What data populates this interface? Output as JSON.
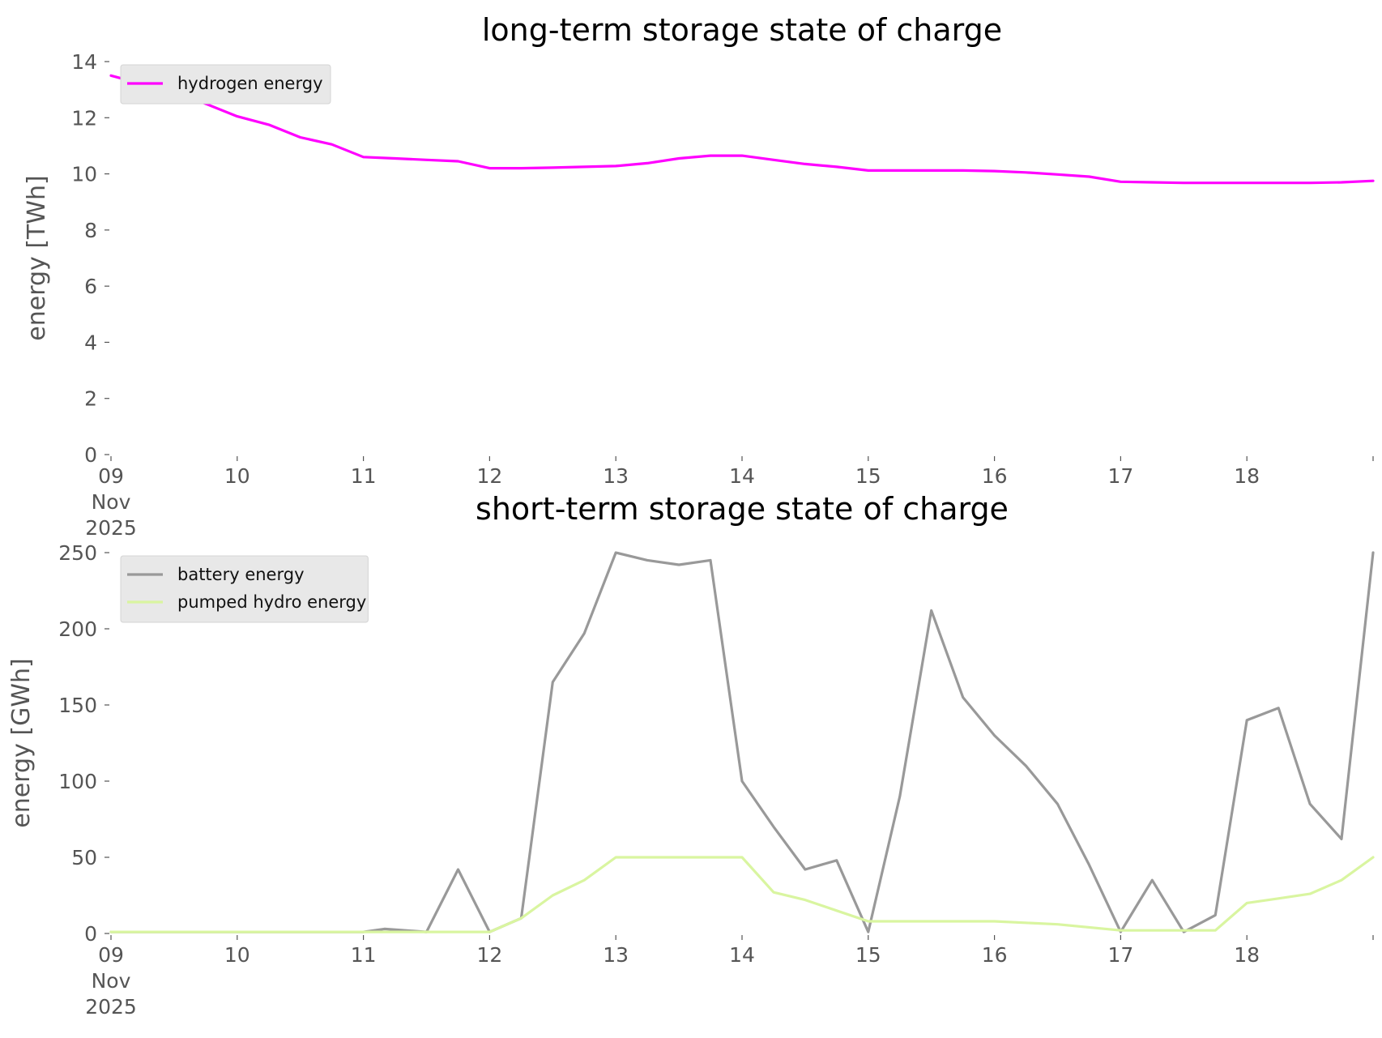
{
  "chart_data": [
    {
      "type": "line",
      "title": "long-term storage state of charge",
      "xlabel": "",
      "ylabel": "energy [TWh]",
      "xlim": [
        "2025-11-09T00:00",
        "2025-11-19T00:00"
      ],
      "ylim": [
        0,
        14
      ],
      "yticks": [
        0,
        2,
        4,
        6,
        8,
        10,
        12,
        14
      ],
      "xtick_labels": [
        "09\nNov\n2025",
        "10",
        "11",
        "12",
        "13",
        "14",
        "15",
        "16",
        "17",
        "18"
      ],
      "grid": false,
      "legend": "top-left",
      "series": [
        {
          "name": "hydrogen energy",
          "color": "#ff00ff",
          "points": [
            [
              "2025-11-09T00:00",
              13.5
            ],
            [
              "2025-11-09T06:00",
              13.2
            ],
            [
              "2025-11-09T12:00",
              12.95
            ],
            [
              "2025-11-09T18:00",
              12.5
            ],
            [
              "2025-11-10T00:00",
              12.05
            ],
            [
              "2025-11-10T06:00",
              11.75
            ],
            [
              "2025-11-10T12:00",
              11.3
            ],
            [
              "2025-11-10T18:00",
              11.05
            ],
            [
              "2025-11-11T00:00",
              10.6
            ],
            [
              "2025-11-11T06:00",
              10.55
            ],
            [
              "2025-11-11T12:00",
              10.5
            ],
            [
              "2025-11-11T18:00",
              10.45
            ],
            [
              "2025-11-12T00:00",
              10.2
            ],
            [
              "2025-11-12T06:00",
              10.2
            ],
            [
              "2025-11-12T12:00",
              10.22
            ],
            [
              "2025-11-12T18:00",
              10.25
            ],
            [
              "2025-11-13T00:00",
              10.28
            ],
            [
              "2025-11-13T06:00",
              10.38
            ],
            [
              "2025-11-13T12:00",
              10.55
            ],
            [
              "2025-11-13T18:00",
              10.65
            ],
            [
              "2025-11-14T00:00",
              10.65
            ],
            [
              "2025-11-14T06:00",
              10.5
            ],
            [
              "2025-11-14T12:00",
              10.35
            ],
            [
              "2025-11-14T18:00",
              10.25
            ],
            [
              "2025-11-15T00:00",
              10.12
            ],
            [
              "2025-11-15T06:00",
              10.12
            ],
            [
              "2025-11-15T12:00",
              10.12
            ],
            [
              "2025-11-15T18:00",
              10.12
            ],
            [
              "2025-11-16T00:00",
              10.1
            ],
            [
              "2025-11-16T06:00",
              10.05
            ],
            [
              "2025-11-16T12:00",
              9.98
            ],
            [
              "2025-11-16T18:00",
              9.9
            ],
            [
              "2025-11-17T00:00",
              9.72
            ],
            [
              "2025-11-17T06:00",
              9.7
            ],
            [
              "2025-11-17T12:00",
              9.68
            ],
            [
              "2025-11-17T18:00",
              9.68
            ],
            [
              "2025-11-18T00:00",
              9.68
            ],
            [
              "2025-11-18T06:00",
              9.68
            ],
            [
              "2025-11-18T12:00",
              9.68
            ],
            [
              "2025-11-18T18:00",
              9.7
            ],
            [
              "2025-11-19T00:00",
              9.75
            ]
          ]
        }
      ]
    },
    {
      "type": "line",
      "title": "short-term storage state of charge",
      "xlabel": "",
      "ylabel": "energy [GWh]",
      "xlim": [
        "2025-11-09T00:00",
        "2025-11-19T00:00"
      ],
      "ylim": [
        0,
        250
      ],
      "yticks": [
        0,
        50,
        100,
        150,
        200,
        250
      ],
      "xtick_labels": [
        "09\nNov\n2025",
        "10",
        "11",
        "12",
        "13",
        "14",
        "15",
        "16",
        "17",
        "18"
      ],
      "grid": false,
      "legend": "top-left",
      "series": [
        {
          "name": "battery energy",
          "color": "#999999",
          "points": [
            [
              "2025-11-09T00:00",
              1
            ],
            [
              "2025-11-11T00:00",
              1
            ],
            [
              "2025-11-11T04:00",
              3
            ],
            [
              "2025-11-11T08:00",
              2
            ],
            [
              "2025-11-11T12:00",
              1
            ],
            [
              "2025-11-11T18:00",
              42
            ],
            [
              "2025-11-12T00:00",
              1
            ],
            [
              "2025-11-12T06:00",
              10
            ],
            [
              "2025-11-12T12:00",
              165
            ],
            [
              "2025-11-12T18:00",
              197
            ],
            [
              "2025-11-13T00:00",
              250
            ],
            [
              "2025-11-13T06:00",
              245
            ],
            [
              "2025-11-13T12:00",
              242
            ],
            [
              "2025-11-13T18:00",
              245
            ],
            [
              "2025-11-14T00:00",
              100
            ],
            [
              "2025-11-14T06:00",
              70
            ],
            [
              "2025-11-14T12:00",
              42
            ],
            [
              "2025-11-14T18:00",
              48
            ],
            [
              "2025-11-15T00:00",
              1
            ],
            [
              "2025-11-15T06:00",
              90
            ],
            [
              "2025-11-15T12:00",
              212
            ],
            [
              "2025-11-15T18:00",
              155
            ],
            [
              "2025-11-16T00:00",
              130
            ],
            [
              "2025-11-16T06:00",
              110
            ],
            [
              "2025-11-16T12:00",
              85
            ],
            [
              "2025-11-16T18:00",
              45
            ],
            [
              "2025-11-17T00:00",
              1
            ],
            [
              "2025-11-17T06:00",
              35
            ],
            [
              "2025-11-17T12:00",
              1
            ],
            [
              "2025-11-17T18:00",
              12
            ],
            [
              "2025-11-18T00:00",
              140
            ],
            [
              "2025-11-18T06:00",
              148
            ],
            [
              "2025-11-18T12:00",
              85
            ],
            [
              "2025-11-18T18:00",
              62
            ],
            [
              "2025-11-19T00:00",
              250
            ]
          ]
        },
        {
          "name": "pumped hydro energy",
          "color": "#d9f5a0",
          "points": [
            [
              "2025-11-09T00:00",
              1
            ],
            [
              "2025-11-12T00:00",
              1
            ],
            [
              "2025-11-12T06:00",
              10
            ],
            [
              "2025-11-12T12:00",
              25
            ],
            [
              "2025-11-12T18:00",
              35
            ],
            [
              "2025-11-13T00:00",
              50
            ],
            [
              "2025-11-13T12:00",
              50
            ],
            [
              "2025-11-14T00:00",
              50
            ],
            [
              "2025-11-14T06:00",
              27
            ],
            [
              "2025-11-14T12:00",
              22
            ],
            [
              "2025-11-14T18:00",
              15
            ],
            [
              "2025-11-15T00:00",
              8
            ],
            [
              "2025-11-15T12:00",
              8
            ],
            [
              "2025-11-16T00:00",
              8
            ],
            [
              "2025-11-16T12:00",
              6
            ],
            [
              "2025-11-17T00:00",
              2
            ],
            [
              "2025-11-17T12:00",
              2
            ],
            [
              "2025-11-17T18:00",
              2
            ],
            [
              "2025-11-18T00:00",
              20
            ],
            [
              "2025-11-18T06:00",
              23
            ],
            [
              "2025-11-18T12:00",
              26
            ],
            [
              "2025-11-18T18:00",
              35
            ],
            [
              "2025-11-19T00:00",
              50
            ]
          ]
        }
      ]
    }
  ]
}
